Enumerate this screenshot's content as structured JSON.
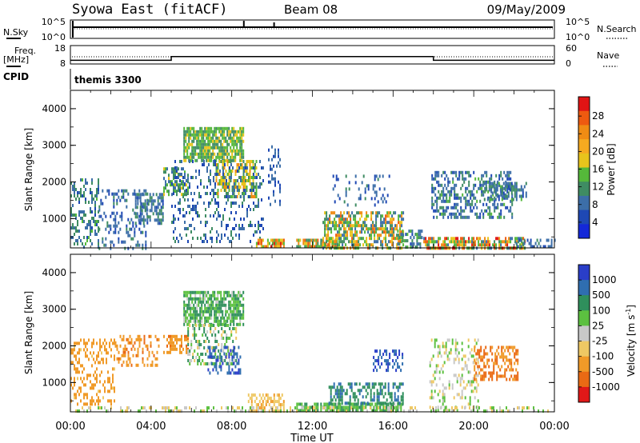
{
  "chart_data": {
    "type": "heatmap",
    "header": {
      "station": "Syowa East (fitACF)",
      "beam": "Beam 08",
      "date": "09/May/2009"
    },
    "xaxis": {
      "label": "Time UT",
      "ticks": [
        "00:00",
        "04:00",
        "08:00",
        "12:00",
        "16:00",
        "20:00",
        "00:00"
      ],
      "range_hours": [
        0,
        24
      ]
    },
    "noise_panel": {
      "left_label": "N.Sky",
      "left_ticks": [
        "10^5",
        "10^0"
      ],
      "right_ticks": [
        "10^5",
        "10^0"
      ],
      "right_label": "N.Search",
      "spikes_hours": [
        8.6,
        10.1
      ]
    },
    "freq_panel": {
      "left_label_1": "Freq.",
      "left_label_2": "[MHz]",
      "left_ticks": [
        "18",
        "8"
      ],
      "right_ticks": [
        "60",
        "0"
      ],
      "right_label": "Nave",
      "freq_steps": [
        [
          0,
          10
        ],
        [
          5,
          12
        ],
        [
          18,
          10
        ],
        [
          24,
          10
        ]
      ]
    },
    "cpid": {
      "label": "CPID",
      "value": "themis 3300"
    },
    "power_panel": {
      "ylabel": "Slant Range [km]",
      "yticks": [
        "4000",
        "3000",
        "2000",
        "1000"
      ],
      "ylim": [
        200,
        4500
      ],
      "colorbar_label": "Power [dB]",
      "colorbar_ticks": [
        "28",
        "24",
        "20",
        "16",
        "12",
        "8",
        "4"
      ],
      "scale": [
        0,
        30
      ]
    },
    "velocity_panel": {
      "ylabel": "Slant Range [km]",
      "yticks": [
        "4000",
        "3000",
        "2000",
        "1000"
      ],
      "ylim": [
        200,
        4500
      ],
      "colorbar_label": "Velocity [m s",
      "colorbar_label_sup": "-1",
      "colorbar_label_tail": "]",
      "colorbar_ticks": [
        "1000",
        "500",
        "100",
        "25",
        "-25",
        "-100",
        "-500",
        "-1000"
      ]
    },
    "power_regions": [
      {
        "t": [
          0,
          1.4
        ],
        "r": [
          200,
          2100
        ],
        "v": [
          6,
          14
        ],
        "d": 0.35
      },
      {
        "t": [
          1.4,
          3.8
        ],
        "r": [
          200,
          1800
        ],
        "v": [
          4,
          12
        ],
        "d": 0.25
      },
      {
        "t": [
          3.2,
          4.6
        ],
        "r": [
          900,
          1700
        ],
        "v": [
          6,
          12
        ],
        "d": 0.55
      },
      {
        "t": [
          4.6,
          5.8
        ],
        "r": [
          1700,
          2400
        ],
        "v": [
          8,
          18
        ],
        "d": 0.5
      },
      {
        "t": [
          5.6,
          8.6
        ],
        "r": [
          2600,
          3500
        ],
        "v": [
          10,
          18
        ],
        "d": 0.8
      },
      {
        "t": [
          7.2,
          9.2
        ],
        "r": [
          1600,
          2600
        ],
        "v": [
          12,
          22
        ],
        "d": 0.55
      },
      {
        "t": [
          5.0,
          9.6
        ],
        "r": [
          400,
          2600
        ],
        "v": [
          4,
          12
        ],
        "d": 0.2
      },
      {
        "t": [
          9.2,
          10.6
        ],
        "r": [
          250,
          450
        ],
        "v": [
          14,
          28
        ],
        "d": 0.85
      },
      {
        "t": [
          9.8,
          10.4
        ],
        "r": [
          1400,
          3000
        ],
        "v": [
          4,
          10
        ],
        "d": 0.25
      },
      {
        "t": [
          11.2,
          13.2
        ],
        "r": [
          200,
          450
        ],
        "v": [
          10,
          26
        ],
        "d": 0.8
      },
      {
        "t": [
          12.5,
          16.5
        ],
        "r": [
          200,
          1200
        ],
        "v": [
          8,
          24
        ],
        "d": 0.6
      },
      {
        "t": [
          13.0,
          15.8
        ],
        "r": [
          1400,
          2200
        ],
        "v": [
          4,
          12
        ],
        "d": 0.15
      },
      {
        "t": [
          16.2,
          17.4
        ],
        "r": [
          200,
          700
        ],
        "v": [
          6,
          16
        ],
        "d": 0.5
      },
      {
        "t": [
          17.9,
          21.9
        ],
        "r": [
          1000,
          2300
        ],
        "v": [
          4,
          14
        ],
        "d": 0.45
      },
      {
        "t": [
          17.5,
          22.5
        ],
        "r": [
          200,
          500
        ],
        "v": [
          8,
          28
        ],
        "d": 0.7
      },
      {
        "t": [
          20.5,
          22.6
        ],
        "r": [
          1500,
          2000
        ],
        "v": [
          6,
          14
        ],
        "d": 0.5
      },
      {
        "t": [
          22.0,
          24.0
        ],
        "r": [
          200,
          450
        ],
        "v": [
          4,
          12
        ],
        "d": 0.35
      }
    ],
    "velocity_regions": [
      {
        "t": [
          0,
          2.2
        ],
        "r": [
          400,
          2200
        ],
        "v": [
          -400,
          -80
        ],
        "d": 0.3
      },
      {
        "t": [
          2.2,
          4.4
        ],
        "r": [
          1500,
          2300
        ],
        "v": [
          -500,
          -100
        ],
        "d": 0.35
      },
      {
        "t": [
          4.6,
          5.8
        ],
        "r": [
          1800,
          2300
        ],
        "v": [
          -500,
          -100
        ],
        "d": 0.4
      },
      {
        "t": [
          5.6,
          8.6
        ],
        "r": [
          2600,
          3500
        ],
        "v": [
          0,
          200
        ],
        "d": 0.75
      },
      {
        "t": [
          5.8,
          8.2
        ],
        "r": [
          1500,
          2600
        ],
        "v": [
          -100,
          200
        ],
        "d": 0.35
      },
      {
        "t": [
          6.8,
          8.4
        ],
        "r": [
          1300,
          2000
        ],
        "v": [
          400,
          1100
        ],
        "d": 0.35
      },
      {
        "t": [
          8.8,
          10.6
        ],
        "r": [
          200,
          700
        ],
        "v": [
          -120,
          -40
        ],
        "d": 0.6
      },
      {
        "t": [
          11.2,
          16.5
        ],
        "r": [
          200,
          450
        ],
        "v": [
          20,
          150
        ],
        "d": 0.75
      },
      {
        "t": [
          12.8,
          16.5
        ],
        "r": [
          400,
          1000
        ],
        "v": [
          100,
          600
        ],
        "d": 0.5
      },
      {
        "t": [
          15.0,
          16.5
        ],
        "r": [
          1300,
          1900
        ],
        "v": [
          400,
          1100
        ],
        "d": 0.45
      },
      {
        "t": [
          17.8,
          20.2
        ],
        "r": [
          200,
          2200
        ],
        "v": [
          -60,
          60
        ],
        "d": 0.25
      },
      {
        "t": [
          20.0,
          22.2
        ],
        "r": [
          1100,
          2000
        ],
        "v": [
          -700,
          -200
        ],
        "d": 0.45
      },
      {
        "t": [
          0,
          24
        ],
        "r": [
          200,
          350
        ],
        "v": [
          -80,
          80
        ],
        "d": 0.3
      }
    ]
  }
}
